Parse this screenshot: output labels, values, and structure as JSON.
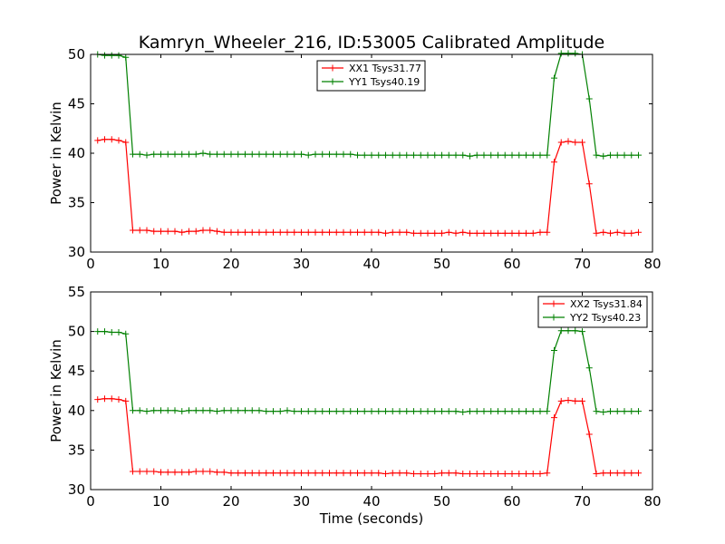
{
  "figure": {
    "title": "Kamryn_Wheeler_216, ID:53005 Calibrated Amplitude"
  },
  "chart_data": [
    {
      "type": "line",
      "title": "Kamryn_Wheeler_216, ID:53005 Calibrated Amplitude",
      "xlabel": "",
      "ylabel": "Power in Kelvin",
      "xlim": [
        0,
        80
      ],
      "ylim": [
        30,
        50
      ],
      "xticks": [
        0,
        10,
        20,
        30,
        40,
        50,
        60,
        70,
        80
      ],
      "yticks": [
        30,
        35,
        40,
        45,
        50
      ],
      "legend_position": "top-center",
      "grid": false,
      "x": [
        1,
        2,
        3,
        4,
        5,
        6,
        7,
        8,
        9,
        10,
        11,
        12,
        13,
        14,
        15,
        16,
        17,
        18,
        19,
        20,
        21,
        22,
        23,
        24,
        25,
        26,
        27,
        28,
        29,
        30,
        31,
        32,
        33,
        34,
        35,
        36,
        37,
        38,
        39,
        40,
        41,
        42,
        43,
        44,
        45,
        46,
        47,
        48,
        49,
        50,
        51,
        52,
        53,
        54,
        55,
        56,
        57,
        58,
        59,
        60,
        61,
        62,
        63,
        64,
        65,
        66,
        67,
        68,
        69,
        70,
        71,
        72,
        73,
        74,
        75,
        76,
        77,
        78
      ],
      "series": [
        {
          "name": "XX1 Tsys31.77",
          "color": "#ff0000",
          "values": [
            41.3,
            41.4,
            41.4,
            41.3,
            41.1,
            32.2,
            32.2,
            32.2,
            32.1,
            32.1,
            32.1,
            32.1,
            32.0,
            32.1,
            32.1,
            32.2,
            32.2,
            32.1,
            32.0,
            32.0,
            32.0,
            32.0,
            32.0,
            32.0,
            32.0,
            32.0,
            32.0,
            32.0,
            32.0,
            32.0,
            32.0,
            32.0,
            32.0,
            32.0,
            32.0,
            32.0,
            32.0,
            32.0,
            32.0,
            32.0,
            32.0,
            31.9,
            32.0,
            32.0,
            32.0,
            31.9,
            31.9,
            31.9,
            31.9,
            31.9,
            32.0,
            31.9,
            32.0,
            31.9,
            31.9,
            31.9,
            31.9,
            31.9,
            31.9,
            31.9,
            31.9,
            31.9,
            31.9,
            32.0,
            32.0,
            39.1,
            41.1,
            41.2,
            41.1,
            41.1,
            36.9,
            31.9,
            32.0,
            31.9,
            32.0,
            31.9,
            31.9,
            32.0
          ]
        },
        {
          "name": "YY1 Tsys40.19",
          "color": "#008000",
          "values": [
            50.0,
            49.9,
            49.9,
            49.9,
            49.7,
            39.9,
            39.9,
            39.8,
            39.9,
            39.9,
            39.9,
            39.9,
            39.9,
            39.9,
            39.9,
            40.0,
            39.9,
            39.9,
            39.9,
            39.9,
            39.9,
            39.9,
            39.9,
            39.9,
            39.9,
            39.9,
            39.9,
            39.9,
            39.9,
            39.9,
            39.8,
            39.9,
            39.9,
            39.9,
            39.9,
            39.9,
            39.9,
            39.8,
            39.8,
            39.8,
            39.8,
            39.8,
            39.8,
            39.8,
            39.8,
            39.8,
            39.8,
            39.8,
            39.8,
            39.8,
            39.8,
            39.8,
            39.8,
            39.7,
            39.8,
            39.8,
            39.8,
            39.8,
            39.8,
            39.8,
            39.8,
            39.8,
            39.8,
            39.8,
            39.8,
            47.6,
            50.1,
            50.1,
            50.1,
            50.0,
            45.5,
            39.8,
            39.7,
            39.8,
            39.8,
            39.8,
            39.8,
            39.8
          ]
        }
      ]
    },
    {
      "type": "line",
      "title": "",
      "xlabel": "Time (seconds)",
      "ylabel": "Power in Kelvin",
      "xlim": [
        0,
        80
      ],
      "ylim": [
        30,
        55
      ],
      "xticks": [
        0,
        10,
        20,
        30,
        40,
        50,
        60,
        70,
        80
      ],
      "yticks": [
        30,
        35,
        40,
        45,
        50,
        55
      ],
      "legend_position": "top-right",
      "grid": false,
      "x": [
        1,
        2,
        3,
        4,
        5,
        6,
        7,
        8,
        9,
        10,
        11,
        12,
        13,
        14,
        15,
        16,
        17,
        18,
        19,
        20,
        21,
        22,
        23,
        24,
        25,
        26,
        27,
        28,
        29,
        30,
        31,
        32,
        33,
        34,
        35,
        36,
        37,
        38,
        39,
        40,
        41,
        42,
        43,
        44,
        45,
        46,
        47,
        48,
        49,
        50,
        51,
        52,
        53,
        54,
        55,
        56,
        57,
        58,
        59,
        60,
        61,
        62,
        63,
        64,
        65,
        66,
        67,
        68,
        69,
        70,
        71,
        72,
        73,
        74,
        75,
        76,
        77,
        78
      ],
      "series": [
        {
          "name": "XX2 Tsys31.84",
          "color": "#ff0000",
          "values": [
            41.4,
            41.5,
            41.5,
            41.4,
            41.2,
            32.3,
            32.3,
            32.3,
            32.3,
            32.2,
            32.2,
            32.2,
            32.2,
            32.2,
            32.3,
            32.3,
            32.3,
            32.2,
            32.2,
            32.1,
            32.1,
            32.1,
            32.1,
            32.1,
            32.1,
            32.1,
            32.1,
            32.1,
            32.1,
            32.1,
            32.1,
            32.1,
            32.1,
            32.1,
            32.1,
            32.1,
            32.1,
            32.1,
            32.1,
            32.1,
            32.1,
            32.0,
            32.1,
            32.1,
            32.1,
            32.0,
            32.0,
            32.0,
            32.0,
            32.1,
            32.1,
            32.1,
            32.0,
            32.0,
            32.0,
            32.0,
            32.0,
            32.0,
            32.0,
            32.0,
            32.0,
            32.0,
            32.0,
            32.0,
            32.1,
            39.1,
            41.2,
            41.3,
            41.2,
            41.2,
            37.0,
            32.0,
            32.1,
            32.1,
            32.1,
            32.1,
            32.1,
            32.1
          ]
        },
        {
          "name": "YY2 Tsys40.23",
          "color": "#008000",
          "values": [
            50.0,
            50.0,
            49.9,
            49.9,
            49.7,
            40.0,
            40.0,
            39.9,
            40.0,
            40.0,
            40.0,
            40.0,
            39.9,
            40.0,
            40.0,
            40.0,
            40.0,
            39.9,
            40.0,
            40.0,
            40.0,
            40.0,
            40.0,
            40.0,
            39.9,
            39.9,
            39.9,
            40.0,
            39.9,
            39.9,
            39.9,
            39.9,
            39.9,
            39.9,
            39.9,
            39.9,
            39.9,
            39.9,
            39.9,
            39.9,
            39.9,
            39.9,
            39.9,
            39.9,
            39.9,
            39.9,
            39.9,
            39.9,
            39.9,
            39.9,
            39.9,
            39.9,
            39.8,
            39.9,
            39.9,
            39.9,
            39.9,
            39.9,
            39.9,
            39.9,
            39.9,
            39.9,
            39.9,
            39.9,
            39.9,
            47.6,
            50.1,
            50.1,
            50.1,
            50.0,
            45.4,
            39.9,
            39.8,
            39.9,
            39.9,
            39.9,
            39.9,
            39.9
          ]
        }
      ]
    }
  ]
}
